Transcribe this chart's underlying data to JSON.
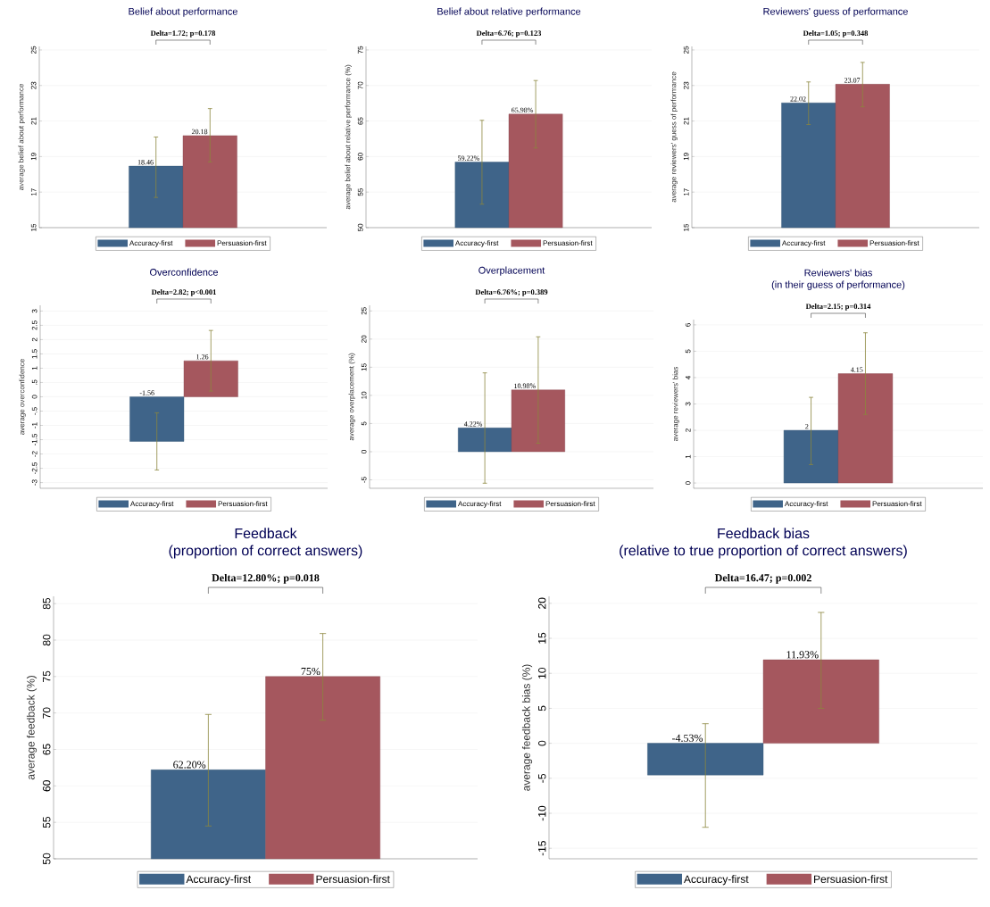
{
  "chart_data": [
    {
      "type": "bar",
      "title": "Belief about performance",
      "ylabel": "average belief about performance",
      "categories": [
        null
      ],
      "ylim": [
        15,
        25.2
      ],
      "yticks": [
        15,
        17,
        19,
        21,
        23,
        25
      ],
      "grid": "y",
      "legend": "bottom",
      "annotations": [
        "Delta=1.72; p=0.178"
      ],
      "series": [
        {
          "name": "Accuracy-first",
          "color": "#3f6489",
          "values": [
            18.46
          ],
          "errors": [
            [
              16.7,
              20.1
            ]
          ],
          "value_labels": [
            "18.46"
          ]
        },
        {
          "name": "Persuasion-first",
          "color": "#a5575e",
          "values": [
            20.18
          ],
          "errors": [
            [
              18.7,
              21.7
            ]
          ],
          "value_labels": [
            "20.18"
          ]
        }
      ]
    },
    {
      "type": "bar",
      "title": "Belief about relative performance",
      "ylabel": "average belief about relative performance (%)",
      "categories": [
        null
      ],
      "ylim": [
        50,
        75.5
      ],
      "yticks": [
        50,
        55,
        60,
        65,
        70,
        75
      ],
      "grid": "y",
      "legend": "bottom",
      "annotations": [
        "Delta=6.76; p=0.123"
      ],
      "series": [
        {
          "name": "Accuracy-first",
          "color": "#3f6489",
          "values": [
            59.22
          ],
          "errors": [
            [
              53.3,
              65.1
            ]
          ],
          "value_labels": [
            "59.22%"
          ]
        },
        {
          "name": "Persuasion-first",
          "color": "#a5575e",
          "values": [
            65.98
          ],
          "errors": [
            [
              61.2,
              70.7
            ]
          ],
          "value_labels": [
            "65.98%"
          ]
        }
      ]
    },
    {
      "type": "bar",
      "title": "Reviewers' guess of performance",
      "ylabel": "average reviewers' guess of performance",
      "categories": [
        null
      ],
      "ylim": [
        15,
        25.2
      ],
      "yticks": [
        15,
        17,
        19,
        21,
        23,
        25
      ],
      "grid": "y",
      "legend": "bottom",
      "annotations": [
        "Delta=1.05; p=0.348"
      ],
      "series": [
        {
          "name": "Accuracy-first",
          "color": "#3f6489",
          "values": [
            22.02
          ],
          "errors": [
            [
              20.8,
              23.2
            ]
          ],
          "value_labels": [
            "22.02"
          ]
        },
        {
          "name": "Persuasion-first",
          "color": "#a5575e",
          "values": [
            23.07
          ],
          "errors": [
            [
              21.8,
              24.3
            ]
          ],
          "value_labels": [
            "23.07"
          ]
        }
      ]
    },
    {
      "type": "bar",
      "title": "Overconfidence",
      "ylabel": "average overconfidence",
      "categories": [
        null
      ],
      "ylim": [
        -3.2,
        3.2
      ],
      "yticks": [
        -3,
        -2.5,
        -2,
        -1.5,
        -1,
        {
          "value": -0.5,
          "label": "-.5"
        },
        0,
        {
          "value": 0.5,
          "label": ".5"
        },
        1,
        1.5,
        2,
        2.5,
        3
      ],
      "grid": "y",
      "legend": "bottom",
      "annotations": [
        "Delta=2.82; p<0.001"
      ],
      "series": [
        {
          "name": "Accuracy-first",
          "color": "#3f6489",
          "values": [
            -1.56
          ],
          "errors": [
            [
              -2.56,
              -0.56
            ]
          ],
          "value_labels": [
            "-1.56"
          ]
        },
        {
          "name": "Persuasion-first",
          "color": "#a5575e",
          "values": [
            1.26
          ],
          "errors": [
            [
              0.2,
              2.32
            ]
          ],
          "value_labels": [
            "1.26"
          ]
        }
      ]
    },
    {
      "type": "bar",
      "title": "Overplacement",
      "ylabel": "average overplacement (%)",
      "categories": [
        null
      ],
      "ylim": [
        -6.5,
        26
      ],
      "yticks": [
        -5,
        0,
        5,
        10,
        15,
        20,
        25
      ],
      "grid": "y",
      "legend": "bottom",
      "annotations": [
        "Delta=6.76%; p=0.389"
      ],
      "series": [
        {
          "name": "Accuracy-first",
          "color": "#3f6489",
          "values": [
            4.22
          ],
          "errors": [
            [
              -5.6,
              14.0
            ]
          ],
          "value_labels": [
            "4.22%"
          ]
        },
        {
          "name": "Persuasion-first",
          "color": "#a5575e",
          "values": [
            10.98
          ],
          "errors": [
            [
              1.5,
              20.4
            ]
          ],
          "value_labels": [
            "10.98%"
          ]
        }
      ]
    },
    {
      "type": "bar",
      "title": "Reviewers' bias",
      "subtitle": "(in their guess of performance)",
      "ylabel": "average reviewers' bias",
      "categories": [
        null
      ],
      "ylim": [
        -0.2,
        6.2
      ],
      "yticks": [
        0,
        1,
        2,
        3,
        4,
        5,
        6
      ],
      "grid": "y",
      "legend": "bottom",
      "annotations": [
        "Delta=2.15; p=0.314"
      ],
      "series": [
        {
          "name": "Accuracy-first",
          "color": "#3f6489",
          "values": [
            2
          ],
          "errors": [
            [
              0.7,
              3.25
            ]
          ],
          "value_labels": [
            "2"
          ]
        },
        {
          "name": "Persuasion-first",
          "color": "#a5575e",
          "values": [
            4.15
          ],
          "errors": [
            [
              2.6,
              5.7
            ]
          ],
          "value_labels": [
            "4.15"
          ]
        }
      ]
    },
    {
      "type": "bar",
      "title": "Feedback",
      "subtitle": "(proportion of correct answers)",
      "ylabel": "average feedback (%)",
      "categories": [
        null
      ],
      "ylim": [
        50,
        86
      ],
      "yticks": [
        50,
        55,
        60,
        65,
        70,
        75,
        80,
        85
      ],
      "grid": "y",
      "legend": "bottom",
      "annotations": [
        "Delta=12.80%; p=0.018"
      ],
      "series": [
        {
          "name": "Accuracy-first",
          "color": "#3f6489",
          "values": [
            62.2
          ],
          "errors": [
            [
              54.5,
              69.8
            ]
          ],
          "value_labels": [
            "62.20%"
          ]
        },
        {
          "name": "Persuasion-first",
          "color": "#a5575e",
          "values": [
            75
          ],
          "errors": [
            [
              69.0,
              80.9
            ]
          ],
          "value_labels": [
            "75%"
          ]
        }
      ]
    },
    {
      "type": "bar",
      "title": "Feedback bias",
      "subtitle": "(relative to true proportion of correct answers)",
      "ylabel": "average feedback bias (%)",
      "categories": [
        null
      ],
      "ylim": [
        -16.5,
        21
      ],
      "yticks": [
        -15,
        -10,
        -5,
        0,
        5,
        10,
        15,
        20
      ],
      "grid": "y",
      "legend": "bottom",
      "annotations": [
        "Delta=16.47; p=0.002"
      ],
      "series": [
        {
          "name": "Accuracy-first",
          "color": "#3f6489",
          "values": [
            -4.53
          ],
          "errors": [
            [
              -12.0,
              2.8
            ]
          ],
          "value_labels": [
            "-4.53%"
          ]
        },
        {
          "name": "Persuasion-first",
          "color": "#a5575e",
          "values": [
            11.93
          ],
          "errors": [
            [
              5.0,
              18.7
            ]
          ],
          "value_labels": [
            "11.93%"
          ]
        }
      ]
    }
  ]
}
